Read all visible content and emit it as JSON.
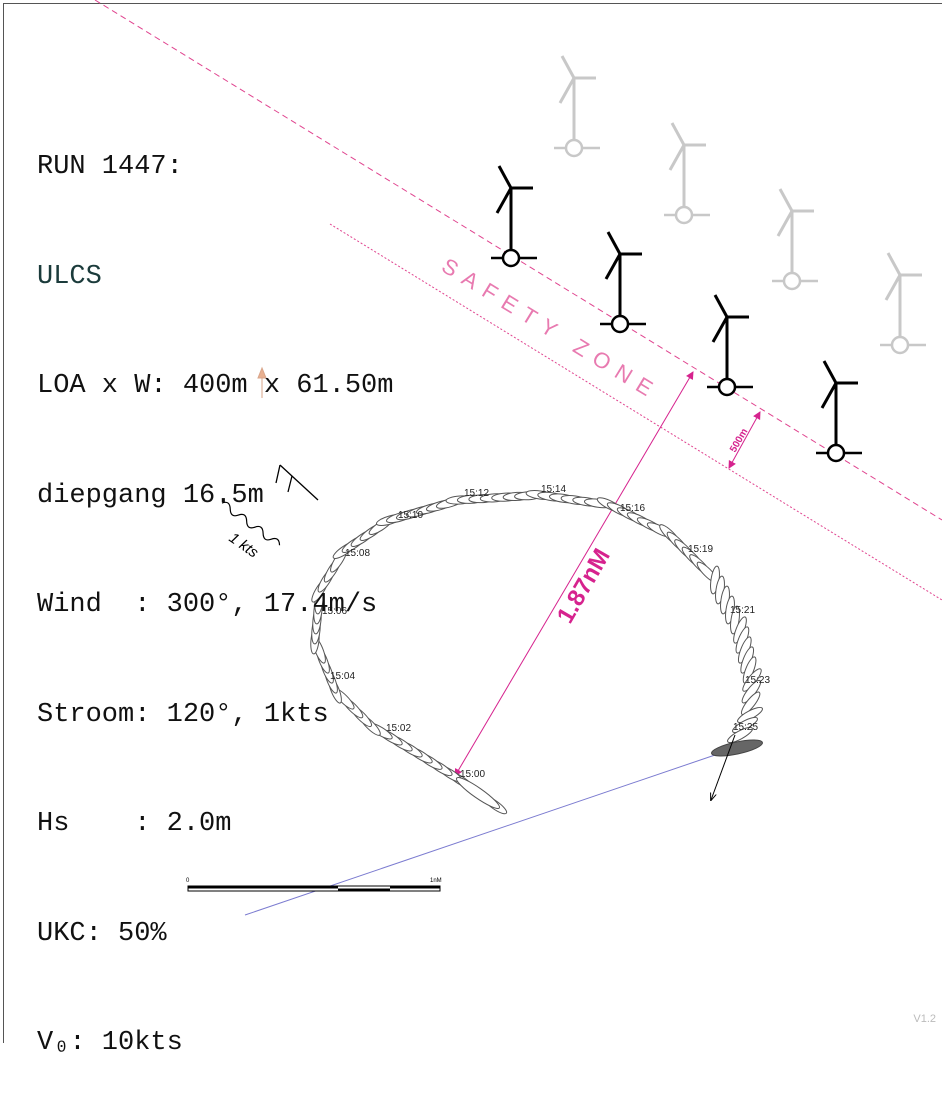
{
  "info": {
    "run": "RUN 1447:",
    "vessel": "ULCS",
    "dimensions": "LOA x W: 400m x 61.50m",
    "draught": "diepgang 16.5m",
    "wind": "Wind  : 300°, 17.4m/s",
    "current": "Stroom: 120°, 1kts",
    "waves": "Hs    : 2.0m",
    "ukc": "UKC: 50%",
    "speed": "V₀: 10kts"
  },
  "map": {
    "safety_zone": "SAFETY ZONE",
    "zone_width": "500m",
    "distance": "1.87nM",
    "current_label": "1 kts",
    "times": [
      "15:00",
      "15:02",
      "15:04",
      "15:06",
      "15:08",
      "15:10",
      "15:12",
      "15:14",
      "15:16",
      "15:19",
      "15:21",
      "15:23",
      "15:25"
    ],
    "scale_start": "0",
    "scale_end": "1nM"
  },
  "version": "V1.2"
}
